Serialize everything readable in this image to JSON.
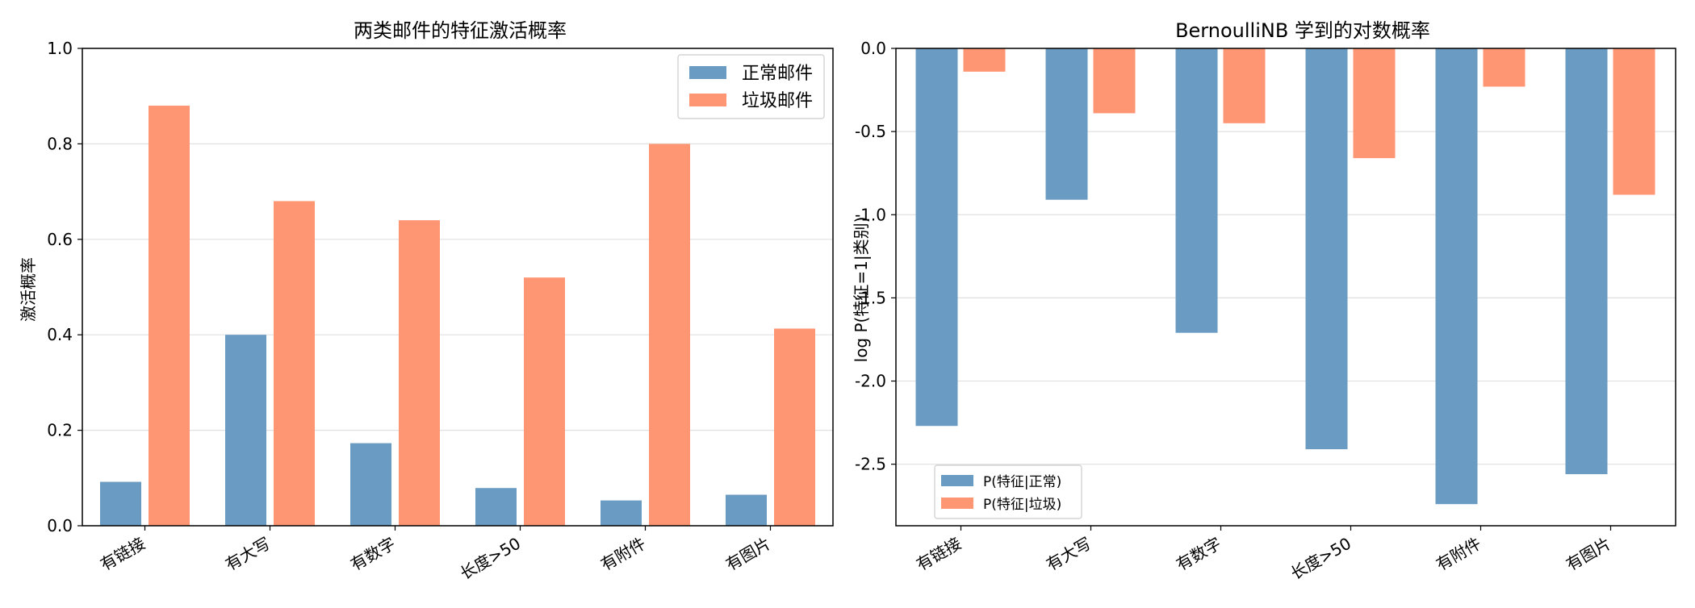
{
  "colors": {
    "normal": "#6a9bc3",
    "spam": "#ff9673"
  },
  "chart_data": [
    {
      "type": "bar",
      "title": "两类邮件的特征激活概率",
      "xlabel": "",
      "ylabel": "激活概率",
      "ylim": [
        0.0,
        1.0
      ],
      "yticks": [
        "0.0",
        "0.2",
        "0.4",
        "0.6",
        "0.8",
        "1.0"
      ],
      "categories": [
        "有链接",
        "有大写",
        "有数字",
        "长度>50",
        "有附件",
        "有图片"
      ],
      "series": [
        {
          "name": "正常邮件",
          "values": [
            0.092,
            0.4,
            0.173,
            0.079,
            0.053,
            0.065
          ]
        },
        {
          "name": "垃圾邮件",
          "values": [
            0.88,
            0.68,
            0.64,
            0.52,
            0.8,
            0.413
          ]
        }
      ],
      "grid": "horizontal",
      "legend": "top-right"
    },
    {
      "type": "bar",
      "title": "BernoulliNB 学到的对数概率",
      "xlabel": "",
      "ylabel": "log P(特征=1|类别)",
      "ylim": [
        -2.87,
        0.0
      ],
      "yticks": [
        "0.0",
        "-0.5",
        "-1.0",
        "-1.5",
        "-2.0",
        "-2.5"
      ],
      "categories": [
        "有链接",
        "有大写",
        "有数字",
        "长度>50",
        "有附件",
        "有图片"
      ],
      "series": [
        {
          "name": "P(特征|正常)",
          "values": [
            -2.27,
            -0.91,
            -1.71,
            -2.41,
            -2.74,
            -2.56
          ]
        },
        {
          "name": "P(特征|垃圾)",
          "values": [
            -0.14,
            -0.39,
            -0.45,
            -0.66,
            -0.23,
            -0.88
          ]
        }
      ],
      "grid": "horizontal",
      "legend": "lower-left"
    }
  ]
}
